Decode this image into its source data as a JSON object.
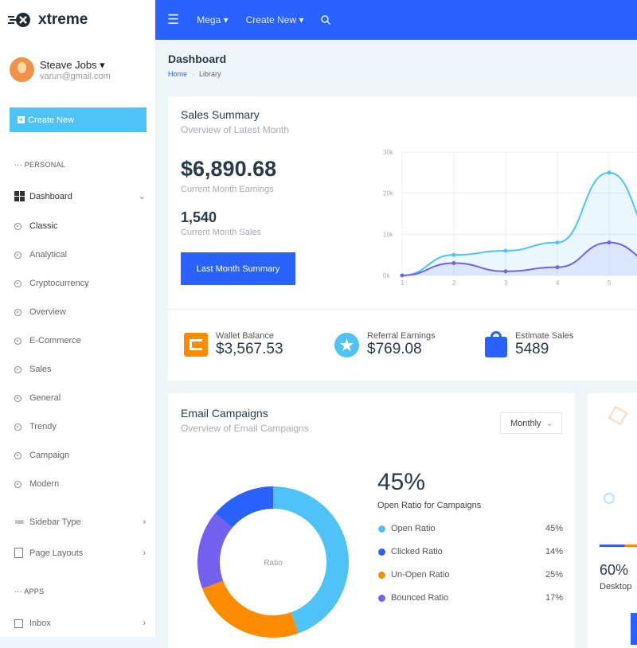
{
  "brand": {
    "name": "xtreme"
  },
  "topbar": {
    "mega": "Mega",
    "create_new": "Create New"
  },
  "user": {
    "name": "Steave Jobs",
    "email": "varun@gmail.com"
  },
  "sidebar": {
    "create_new": "Create New",
    "personal": "PERSONAL",
    "apps": "APPS",
    "dashboard": "Dashboard",
    "sub_items": [
      "Classic",
      "Analytical",
      "Cryptocurrency",
      "Overview",
      "E-Commerce",
      "Sales",
      "General",
      "Trendy",
      "Campaign",
      "Modern"
    ],
    "sidebar_type": "Sidebar Type",
    "page_layouts": "Page Layouts",
    "inbox": "Inbox"
  },
  "page": {
    "title": "Dashboard",
    "breadcrumb": [
      "Home",
      "Library"
    ]
  },
  "sales": {
    "title": "Sales Summary",
    "subtitle": "Overview of Latest Month",
    "earnings": "$6,890.68",
    "earnings_label": "Current Month Earnings",
    "sales": "1,540",
    "sales_label": "Current Month Sales",
    "button": "Last Month Summary"
  },
  "stats": [
    {
      "label": "Wallet Balance",
      "value": "$3,567.53",
      "color": "#fb8c00"
    },
    {
      "label": "Referral Earnings",
      "value": "$769.08",
      "color": "#4fc3f7"
    },
    {
      "label": "Estimate Sales",
      "value": "5489",
      "color": "#2962ff"
    }
  ],
  "email": {
    "title": "Email Campaigns",
    "subtitle": "Overview of Email Campaigns",
    "period": "Monthly",
    "big": "45%",
    "big_label": "Open Ratio for Campaigns",
    "center": "Ratio"
  },
  "device": {
    "value": "60%",
    "label": "Desktop"
  },
  "chart_data": [
    {
      "type": "area",
      "x": [
        1,
        2,
        3,
        4,
        5
      ],
      "ylim": [
        0,
        30000
      ],
      "yticks": [
        "0k",
        "10k",
        "20k",
        "30k"
      ],
      "grid": true,
      "series": [
        {
          "values": [
            0,
            5000,
            6000,
            8000,
            25000
          ],
          "color": "#4fc3f7"
        },
        {
          "values": [
            0,
            3000,
            1000,
            2000,
            8000
          ],
          "color": "#7460ee"
        }
      ]
    },
    {
      "type": "pie",
      "categories": [
        "Open Ratio",
        "Clicked Ratio",
        "Un-Open Ratio",
        "Bounced Ratio"
      ],
      "values": [
        45,
        14,
        25,
        17
      ],
      "labels": [
        "45%",
        "14%",
        "25%",
        "17%"
      ],
      "colors": [
        "#4fc3f7",
        "#2962ff",
        "#fb8c00",
        "#7460ee"
      ]
    }
  ]
}
